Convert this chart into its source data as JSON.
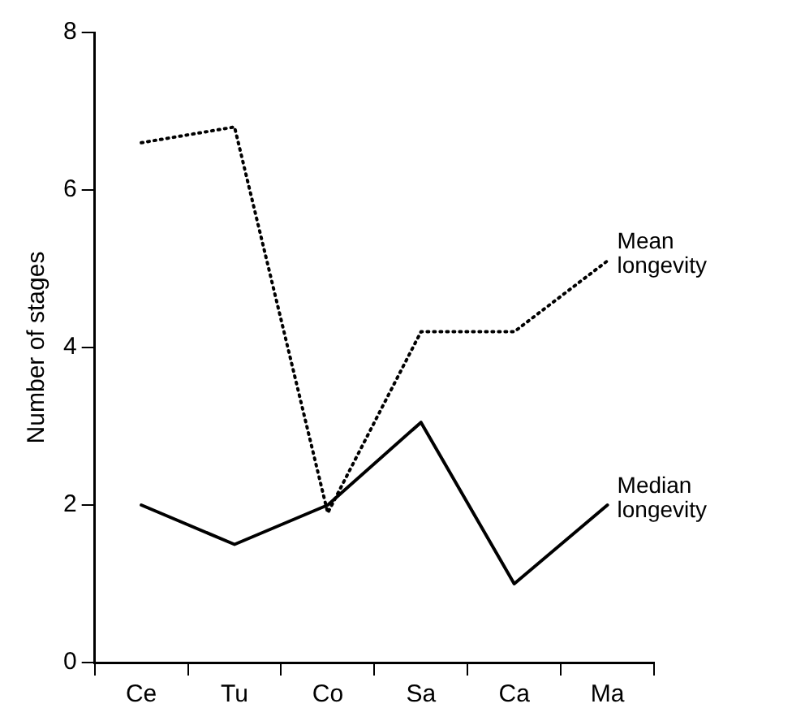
{
  "chart_data": {
    "type": "line",
    "ylabel": "Number of stages",
    "categories": [
      "Ce",
      "Tu",
      "Co",
      "Sa",
      "Ca",
      "Ma"
    ],
    "ylim": [
      0,
      8
    ],
    "yticks": [
      0,
      2,
      4,
      6,
      8
    ],
    "grid": false,
    "legend": false,
    "marker": "none",
    "series": [
      {
        "name": "Mean longevity",
        "color": "#000000",
        "line_style": "dotted",
        "values": [
          6.6,
          6.8,
          1.9,
          4.2,
          4.2,
          5.1
        ]
      },
      {
        "name": "Median longevity",
        "color": "#000000",
        "line_style": "solid",
        "values": [
          2,
          1.5,
          2,
          3.05,
          1,
          2
        ]
      }
    ]
  }
}
